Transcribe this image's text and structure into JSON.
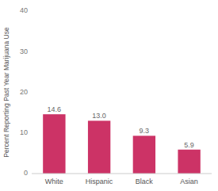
{
  "chart_data": {
    "type": "bar",
    "categories": [
      "White",
      "Hispanic",
      "Black",
      "Asian"
    ],
    "values": [
      14.6,
      13.0,
      9.3,
      5.9
    ],
    "value_labels": [
      "14.6",
      "13.0",
      "9.3",
      "5.9"
    ],
    "data_labels": true,
    "color": "#cc3366",
    "ylabel": "Percent Reporting Past Year Marijuana Use",
    "ylim": [
      0,
      40
    ],
    "yticks": [
      0,
      10,
      20,
      30,
      40
    ],
    "grid": false
  }
}
